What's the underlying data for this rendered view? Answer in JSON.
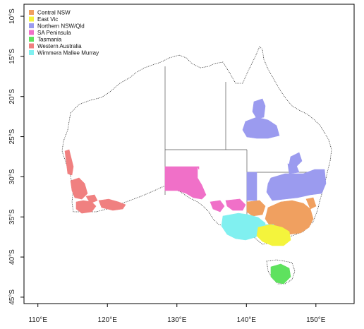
{
  "legend": {
    "items": [
      {
        "label": "Central NSW",
        "color": "#f0a060"
      },
      {
        "label": "East Vic",
        "color": "#f4f43c"
      },
      {
        "label": "Northern NSW/Qld",
        "color": "#9b9bef"
      },
      {
        "label": "SA Peninsula",
        "color": "#f070c8"
      },
      {
        "label": "Tasmania",
        "color": "#5ee25e"
      },
      {
        "label": "Western Australia",
        "color": "#f08080"
      },
      {
        "label": "Wimmera Mallee Murray",
        "color": "#80f0f0"
      }
    ]
  },
  "axes": {
    "x_ticks": [
      {
        "value": 110,
        "label": "110°E"
      },
      {
        "value": 120,
        "label": "120°E"
      },
      {
        "value": 130,
        "label": "130°E"
      },
      {
        "value": 140,
        "label": "140°E"
      },
      {
        "value": 150,
        "label": "150°E"
      }
    ],
    "y_ticks": [
      {
        "value": -10,
        "label": "10°S"
      },
      {
        "value": -15,
        "label": "15°S"
      },
      {
        "value": -20,
        "label": "20°S"
      },
      {
        "value": -25,
        "label": "25°S"
      },
      {
        "value": -30,
        "label": "30°S"
      },
      {
        "value": -35,
        "label": "35°S"
      },
      {
        "value": -40,
        "label": "40°S"
      },
      {
        "value": -45,
        "label": "45°S"
      }
    ],
    "xlim": [
      108,
      155.5
    ],
    "ylim": [
      -45.8,
      -8.5
    ]
  },
  "colors": {
    "coastline": "#333333",
    "state_border": "#555555",
    "frame": "#000000"
  }
}
